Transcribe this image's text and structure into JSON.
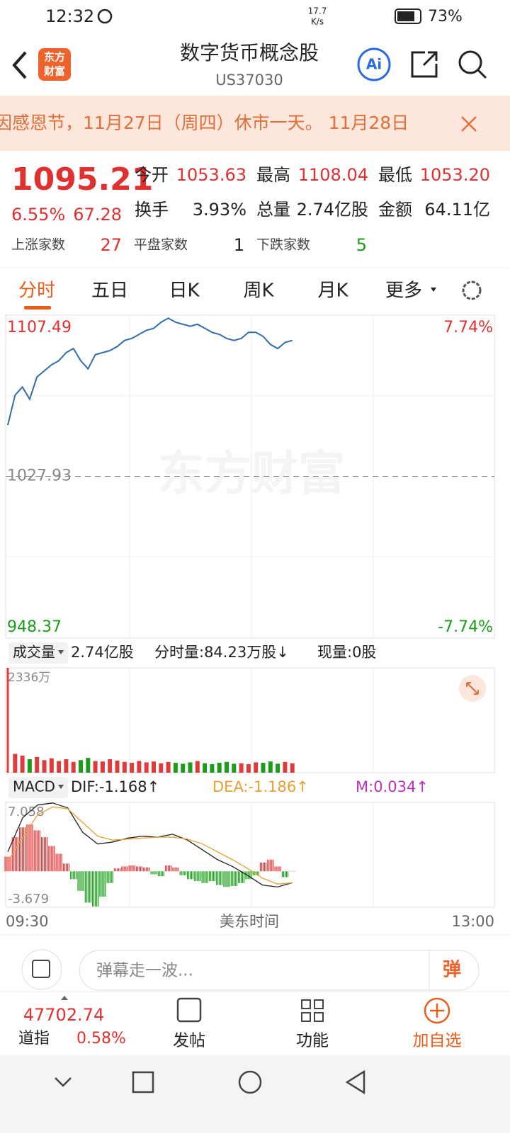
{
  "status_bar": {
    "time": "12:32",
    "net_speed": "17.7",
    "net_unit": "K/s",
    "battery": "73%"
  },
  "header": {
    "logo_line1": "东方",
    "logo_line2": "财富",
    "title": "数字货币概念股",
    "code": "US37030",
    "ai": "Ai"
  },
  "banner": {
    "text": "因感恩节，11月27日（周四）休市一天。 11月28日"
  },
  "quote": {
    "price": "1095.21",
    "change_pct": "6.55%",
    "change": "67.28",
    "fields": [
      {
        "label": "今开",
        "value": "1053.63",
        "color": "#e03030"
      },
      {
        "label": "最高",
        "value": "1108.04",
        "color": "#e03030"
      },
      {
        "label": "最低",
        "value": "1053.20",
        "color": "#e03030"
      },
      {
        "label": "换手",
        "value": "3.93%",
        "color": "#222222"
      },
      {
        "label": "总量",
        "value": "2.74亿股",
        "color": "#222222"
      },
      {
        "label": "金额",
        "value": "64.11亿",
        "color": "#222222"
      }
    ],
    "breadth": [
      {
        "label": "上涨家数",
        "value": "27",
        "color": "#e03030"
      },
      {
        "label": "平盘家数",
        "value": "1",
        "color": "#222222"
      },
      {
        "label": "下跌家数",
        "value": "5",
        "color": "#1a9e1a"
      }
    ]
  },
  "tabs": [
    "分时",
    "五日",
    "日K",
    "周K",
    "月K",
    "更多"
  ],
  "watermark": "东方财富",
  "volume_header": {
    "selector": "成交量",
    "total": "2.74亿股",
    "minute_volume": "分时量:84.23万股↓",
    "current": "现量:0股"
  },
  "macd_header": {
    "selector": "MACD",
    "m_label": "M:0.034↑"
  },
  "chart_data": [
    {
      "type": "line",
      "color": "#2f6ea8",
      "ylim": [
        948.37,
        1107.49
      ],
      "yticks": [
        948.37,
        1027.93,
        1107.49
      ],
      "y2lim": [
        -7.74,
        7.74
      ],
      "y2ticks": [
        {
          "value": -7.74,
          "label": "-7.74%"
        },
        {
          "value": 7.74,
          "label": "7.74%"
        }
      ],
      "values": [
        1053.2,
        1068,
        1072,
        1066,
        1077,
        1080,
        1083,
        1085,
        1089,
        1091,
        1085,
        1081,
        1088,
        1089,
        1090,
        1092,
        1095,
        1096,
        1098,
        1100,
        1101,
        1104,
        1106,
        1104,
        1103,
        1102,
        1103,
        1101,
        1099,
        1098,
        1096,
        1095,
        1096,
        1099,
        1099,
        1097,
        1093,
        1091,
        1094,
        1095
      ]
    },
    {
      "type": "bar",
      "up_color": "#e03b3b",
      "down_color": "#1a9e1a",
      "ylim": [
        0,
        2336
      ],
      "yticks": [
        {
          "value": 2336,
          "label": "2336万"
        }
      ],
      "values": [
        2336,
        420,
        380,
        300,
        350,
        280,
        320,
        260,
        300,
        240,
        280,
        330,
        260,
        250,
        300,
        270,
        240,
        220,
        260,
        230,
        250,
        210,
        240,
        220,
        200,
        230,
        260,
        210,
        190,
        220,
        240,
        200,
        210,
        190,
        230,
        220,
        250,
        200,
        240,
        210
      ]
    },
    {
      "type": "macd",
      "ylim": [
        -3.679,
        7.058
      ],
      "yticks": [
        -3.679,
        7.058
      ],
      "up_color": "#e03b3b",
      "down_color": "#1a9e1a",
      "histogram": [
        1.5,
        3.5,
        4.5,
        4.8,
        4.2,
        3.5,
        2.6,
        1.8,
        0.8,
        -0.8,
        -2.0,
        -3.2,
        -3.6,
        -2.6,
        -1.2,
        0.3,
        0.5,
        0.6,
        0.5,
        0.4,
        -0.3,
        -0.5,
        0.6,
        0.4,
        -0.4,
        -0.8,
        -1.0,
        -1.2,
        -1.0,
        -1.4,
        -1.6,
        -1.5,
        -1.2,
        -0.8,
        -0.4,
        0.9,
        1.2,
        0.5,
        -0.6,
        0.034
      ],
      "series": [
        {
          "label": "DIF:-1.168↑",
          "color": "#222222",
          "values": [
            2.0,
            5.5,
            6.8,
            7.0,
            6.5,
            4.0,
            2.8,
            3.0,
            3.4,
            3.6,
            3.5,
            3.8,
            3.2,
            2.2,
            1.2,
            0.5,
            -0.4,
            -1.4,
            -1.6,
            -1.168
          ]
        },
        {
          "label": "DEA:-1.186↑",
          "color": "#e8a030",
          "values": [
            1.0,
            3.5,
            5.8,
            6.6,
            6.4,
            5.0,
            3.6,
            3.2,
            3.3,
            3.4,
            3.5,
            3.5,
            3.3,
            2.8,
            2.0,
            1.2,
            0.3,
            -0.7,
            -1.3,
            -1.186
          ]
        }
      ]
    }
  ],
  "axis_labels": [
    "09:30",
    "美东时间",
    "13:00"
  ],
  "comment": {
    "placeholder": "弹幕走一波...",
    "button": "弹"
  },
  "bottom_nav": {
    "index_value": "47702.74",
    "index_name": "道指",
    "index_change": "0.58%",
    "items": [
      "发帖",
      "功能",
      "加自选"
    ]
  }
}
